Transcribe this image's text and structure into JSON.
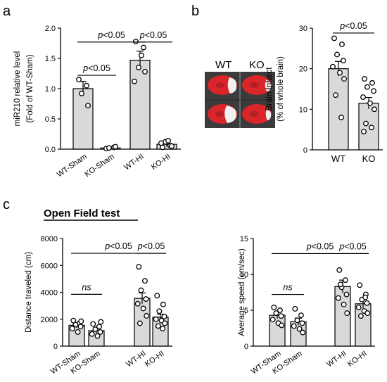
{
  "panel_labels": {
    "a": "a",
    "b": "b",
    "c": "c"
  },
  "panel_c_title": "Open Field test",
  "photo": {
    "label_wt": "WT",
    "label_ko": "KO"
  },
  "chart_data": [
    {
      "id": "a",
      "type": "bar",
      "ylabel_line1": "miR210 relative level",
      "ylabel_line2": "(Fold of WT-Sham)",
      "ylim": [
        0,
        2.0
      ],
      "yticks": [
        "0.0",
        "0.5",
        "1.0",
        "1.5",
        "2.0"
      ],
      "categories": [
        "WT-Sham",
        "KO-Sham",
        "WT-HI",
        "KO-HI"
      ],
      "values": [
        1.0,
        0.02,
        1.47,
        0.08
      ],
      "errors": [
        0.12,
        0.02,
        0.15,
        0.04
      ],
      "points": [
        [
          1.15,
          1.05,
          0.92,
          0.72
        ],
        [
          0.01,
          0.03,
          0.02,
          0.04
        ],
        [
          1.78,
          1.68,
          1.35,
          1.28,
          1.12,
          1.55
        ],
        [
          0.03,
          0.06,
          0.12,
          0.05,
          0.1,
          0.14
        ]
      ],
      "sig_text": "p<0.05",
      "grid": false,
      "comparisons": [
        {
          "from": 0,
          "to": 2,
          "y": 1.77,
          "text": "p<0.05"
        },
        {
          "from": 0,
          "to": 1,
          "y": 1.22,
          "text": "p<0.05"
        },
        {
          "from": 2,
          "to": 3,
          "y": 1.77,
          "text": "p<0.05"
        }
      ]
    },
    {
      "id": "b",
      "type": "bar",
      "ylabel_line1": "Brain Infarct",
      "ylabel_line2": "(% of whole brain)",
      "ylim": [
        0,
        30
      ],
      "yticks": [
        "0",
        "10",
        "20",
        "30"
      ],
      "categories": [
        "WT",
        "KO"
      ],
      "values": [
        20.0,
        11.5
      ],
      "errors": [
        1.8,
        1.4
      ],
      "points": [
        [
          27.5,
          26.0,
          23.5,
          22.0,
          20.5,
          19.0,
          17.5,
          13.5,
          8.0
        ],
        [
          17.5,
          16.5,
          15.5,
          14.5,
          13.0,
          11.5,
          10.0,
          6.5,
          5.5,
          4.5
        ]
      ],
      "grid": false,
      "comparisons": [
        {
          "from": 0,
          "to": 1,
          "y": 28.8,
          "text": "p<0.05"
        }
      ]
    },
    {
      "id": "c_distance",
      "type": "bar",
      "ylabel": "Distance traveled (cm)",
      "ylim": [
        0,
        8000
      ],
      "yticks": [
        "0",
        "2000",
        "4000",
        "6000",
        "8000"
      ],
      "categories": [
        "WT-Sham",
        "KO-Sham",
        "WT-HI",
        "KO-HI"
      ],
      "values": [
        1550,
        1150,
        3550,
        2150
      ],
      "errors": [
        180,
        200,
        400,
        230
      ],
      "points": [
        [
          1900,
          1700,
          1600,
          1450,
          1300,
          1050,
          1850
        ],
        [
          1650,
          1450,
          1250,
          1050,
          900,
          750,
          1800
        ],
        [
          5900,
          4850,
          4150,
          3500,
          3150,
          2800,
          2250,
          1700
        ],
        [
          3750,
          3100,
          2600,
          2200,
          2000,
          1900,
          1700,
          1500,
          1300
        ]
      ],
      "grid": false,
      "comparisons": [
        {
          "from": 0,
          "to": 3,
          "y": 6900,
          "text": "p<0.05"
        },
        {
          "from": 2,
          "to": 3,
          "y": 6900,
          "text": "p<0.05"
        },
        {
          "from": 0,
          "to": 1,
          "y": 3850,
          "text": "ns"
        }
      ]
    },
    {
      "id": "c_speed",
      "type": "bar",
      "ylabel": "Average speed (cm/sec)",
      "ylim": [
        0,
        15
      ],
      "yticks": [
        "0",
        "5",
        "10",
        "15"
      ],
      "categories": [
        "WT-Sham",
        "KO-Sham",
        "WT-HI",
        "KO-HI"
      ],
      "values": [
        4.3,
        3.4,
        8.3,
        5.9
      ],
      "errors": [
        0.5,
        0.5,
        0.9,
        0.6
      ],
      "points": [
        [
          5.4,
          5.0,
          4.6,
          4.2,
          3.7,
          3.2,
          2.9
        ],
        [
          5.2,
          4.3,
          3.6,
          3.2,
          2.8,
          2.4,
          1.9
        ],
        [
          10.6,
          9.2,
          8.2,
          7.2,
          6.7,
          5.8,
          4.6,
          8.6
        ],
        [
          8.5,
          7.2,
          6.5,
          6.0,
          5.4,
          4.9,
          4.6,
          4.2,
          6.8
        ]
      ],
      "grid": false,
      "comparisons": [
        {
          "from": 0,
          "to": 3,
          "y": 12.9,
          "text": "p<0.05"
        },
        {
          "from": 2,
          "to": 3,
          "y": 12.9,
          "text": "p<0.05"
        },
        {
          "from": 0,
          "to": 1,
          "y": 7.2,
          "text": "ns"
        }
      ]
    }
  ]
}
